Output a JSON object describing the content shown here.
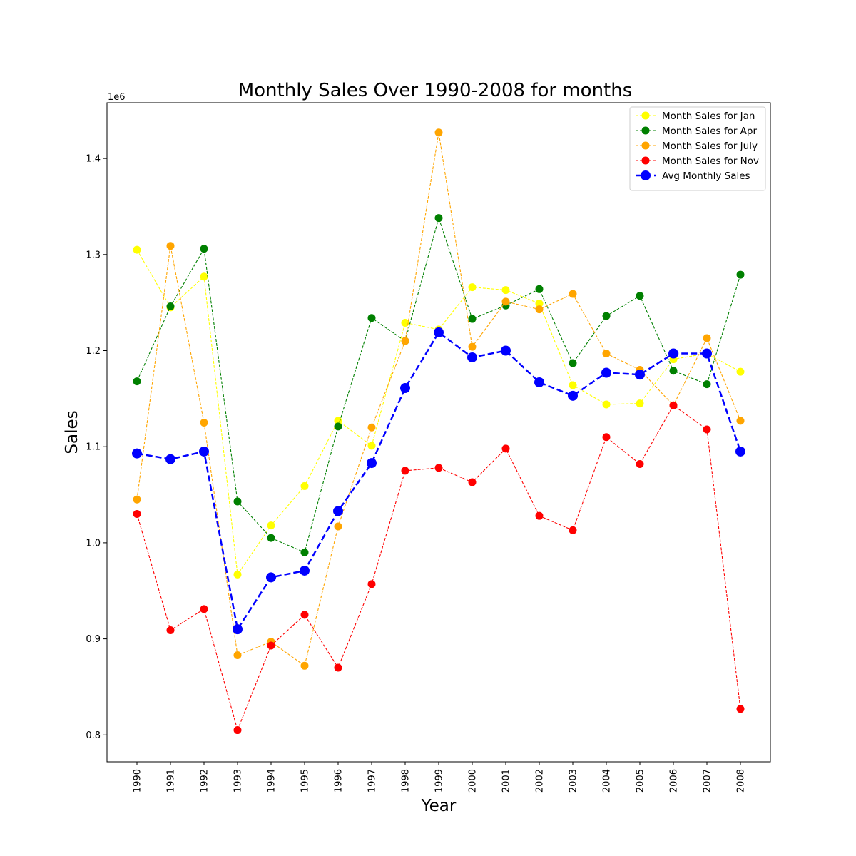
{
  "chart_data": {
    "type": "line",
    "title": "Monthly Sales Over 1990-2008 for months",
    "xlabel": "Year",
    "ylabel": "Sales",
    "y_offset_label": "1e6",
    "y_multiplier": 1000000,
    "ylim": [
      0.772,
      1.458
    ],
    "yticks": [
      0.8,
      0.9,
      1.0,
      1.1,
      1.2,
      1.3,
      1.4
    ],
    "ytick_labels": [
      "0.8",
      "0.9",
      "1.0",
      "1.1",
      "1.2",
      "1.3",
      "1.4"
    ],
    "categories": [
      "1990",
      "1991",
      "1992",
      "1993",
      "1994",
      "1995",
      "1996",
      "1997",
      "1998",
      "1999",
      "2000",
      "2001",
      "2002",
      "2003",
      "2004",
      "2005",
      "2006",
      "2007",
      "2008"
    ],
    "legend_position": "top-right",
    "grid": false,
    "series": [
      {
        "name": "Month Sales for Jan",
        "color": "#ffff00",
        "line_style": "dashed",
        "values": [
          1.305,
          1.245,
          1.277,
          0.967,
          1.018,
          1.059,
          1.127,
          1.101,
          1.229,
          1.222,
          1.266,
          1.263,
          1.249,
          1.164,
          1.144,
          1.145,
          1.191,
          1.197,
          1.178
        ]
      },
      {
        "name": "Month Sales for Apr",
        "color": "#008000",
        "line_style": "dashed",
        "values": [
          1.168,
          1.246,
          1.306,
          1.043,
          1.005,
          0.99,
          1.121,
          1.234,
          1.21,
          1.338,
          1.233,
          1.247,
          1.264,
          1.187,
          1.236,
          1.257,
          1.179,
          1.165,
          1.279
        ]
      },
      {
        "name": "Month Sales for July",
        "color": "#ffa500",
        "line_style": "dashed",
        "values": [
          1.045,
          1.309,
          1.125,
          0.883,
          0.897,
          0.872,
          1.017,
          1.12,
          1.21,
          1.427,
          1.204,
          1.251,
          1.243,
          1.259,
          1.197,
          1.18,
          1.143,
          1.213,
          1.127
        ]
      },
      {
        "name": "Month Sales for Nov",
        "color": "#ff0000",
        "line_style": "dashed",
        "values": [
          1.03,
          0.909,
          0.931,
          0.805,
          0.893,
          0.925,
          0.87,
          0.957,
          1.075,
          1.078,
          1.063,
          1.098,
          1.028,
          1.013,
          1.11,
          1.082,
          1.143,
          1.118,
          0.827
        ]
      },
      {
        "name": "Avg Monthly Sales",
        "color": "#0000ff",
        "line_style": "dashed",
        "emphasis": true,
        "values": [
          1.093,
          1.087,
          1.095,
          0.91,
          0.964,
          0.971,
          1.033,
          1.083,
          1.161,
          1.219,
          1.193,
          1.2,
          1.167,
          1.153,
          1.177,
          1.175,
          1.197,
          1.197,
          1.095
        ]
      }
    ]
  }
}
